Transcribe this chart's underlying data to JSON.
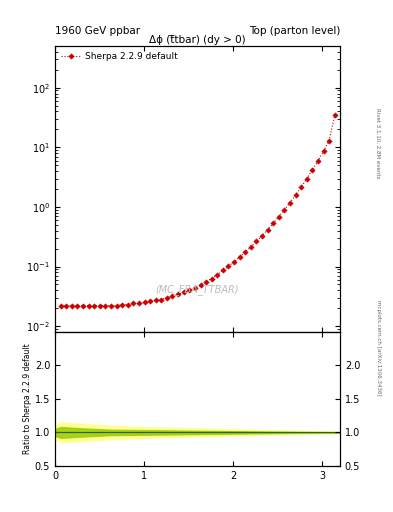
{
  "title_left": "1960 GeV ppbar",
  "title_right": "Top (parton level)",
  "main_title": "Δϕ (t̅tbar) (dy > 0)",
  "watermark": "(MC_FBA_TTBAR)",
  "right_label_top": "Rivet 3.1.10, 2.8M events",
  "right_label_bottom": "mcplots.cern.ch [arXiv:1306.3436]",
  "legend_label": "Sherpa 2.2.9 default",
  "line_color": "#cc0000",
  "marker": "D",
  "marker_size": 2.8,
  "xlim": [
    0.0,
    3.2
  ],
  "ylim_main": [
    0.008,
    500
  ],
  "ylim_ratio": [
    0.5,
    2.5
  ],
  "ratio_yticks": [
    0.5,
    1.0,
    1.5,
    2.0
  ],
  "ylabel_ratio": "Ratio to Sherpa 2.2.9 default",
  "x_data": [
    0.063,
    0.126,
    0.188,
    0.251,
    0.314,
    0.377,
    0.44,
    0.503,
    0.565,
    0.628,
    0.691,
    0.754,
    0.817,
    0.88,
    0.942,
    1.005,
    1.068,
    1.131,
    1.194,
    1.257,
    1.319,
    1.382,
    1.445,
    1.508,
    1.571,
    1.634,
    1.696,
    1.759,
    1.822,
    1.885,
    1.948,
    2.011,
    2.073,
    2.136,
    2.199,
    2.262,
    2.325,
    2.388,
    2.45,
    2.513,
    2.576,
    2.639,
    2.702,
    2.765,
    2.827,
    2.89,
    2.953,
    3.016,
    3.079,
    3.142
  ],
  "y_data": [
    0.022,
    0.022,
    0.022,
    0.022,
    0.022,
    0.022,
    0.022,
    0.022,
    0.022,
    0.022,
    0.022,
    0.023,
    0.023,
    0.024,
    0.024,
    0.025,
    0.026,
    0.027,
    0.028,
    0.03,
    0.032,
    0.034,
    0.037,
    0.04,
    0.044,
    0.049,
    0.055,
    0.063,
    0.073,
    0.086,
    0.101,
    0.12,
    0.144,
    0.174,
    0.213,
    0.264,
    0.33,
    0.415,
    0.53,
    0.685,
    0.895,
    1.18,
    1.58,
    2.15,
    2.98,
    4.18,
    5.9,
    8.6,
    13.0,
    35.0
  ],
  "band_outer_color": "#ffff99",
  "band_inner_color": "#99cc00",
  "ratio_x": [
    0.0,
    0.063,
    0.314,
    0.628,
    1.257,
    2.513,
    3.142,
    3.2
  ],
  "band_outer_y1": [
    0.9,
    0.85,
    0.87,
    0.9,
    0.93,
    0.97,
    0.99,
    1.0
  ],
  "band_outer_y2": [
    1.1,
    1.15,
    1.13,
    1.1,
    1.07,
    1.03,
    1.01,
    1.0
  ],
  "band_inner_y1": [
    0.95,
    0.92,
    0.94,
    0.96,
    0.97,
    0.99,
    1.0,
    1.0
  ],
  "band_inner_y2": [
    1.05,
    1.08,
    1.06,
    1.04,
    1.03,
    1.01,
    1.0,
    1.0
  ],
  "grid_color": "#cccccc",
  "background_color": "#ffffff",
  "fig_width": 3.93,
  "fig_height": 5.12
}
